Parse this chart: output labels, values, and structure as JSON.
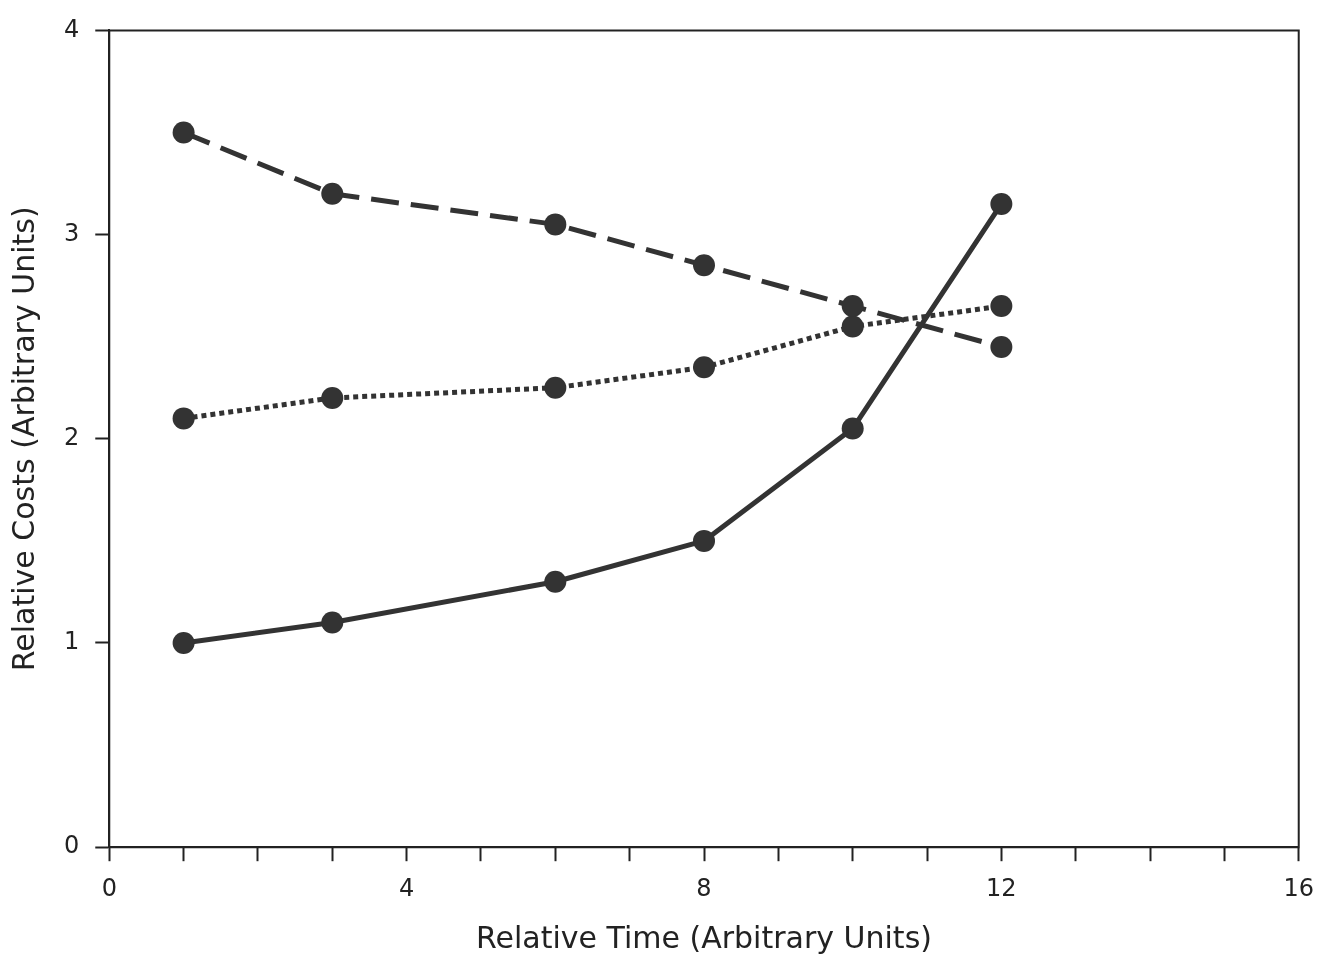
{
  "chart_data": {
    "type": "line",
    "xlabel": "Relative Time (Arbitrary Units)",
    "ylabel": "Relative Costs (Arbitrary Units)",
    "xlim": [
      0,
      16
    ],
    "xticks": [
      0,
      {
        "value": 1,
        "label": null
      },
      {
        "value": 2,
        "label": null
      },
      {
        "value": 3,
        "label": null
      },
      4,
      {
        "value": 5,
        "label": null
      },
      {
        "value": 6,
        "label": null
      },
      {
        "value": 7,
        "label": null
      },
      8,
      {
        "value": 9,
        "label": null
      },
      {
        "value": 10,
        "label": null
      },
      {
        "value": 11,
        "label": null
      },
      12,
      {
        "value": 13,
        "label": null
      },
      {
        "value": 14,
        "label": null
      },
      {
        "value": 15,
        "label": null
      },
      16
    ],
    "ylim": [
      0,
      4
    ],
    "yticks": [
      0,
      1,
      2,
      3,
      4
    ],
    "marker": "circle",
    "legend": false,
    "series": [
      {
        "color": "#333333",
        "line_style": "solid",
        "x": [
          1,
          3,
          6,
          8,
          10,
          12
        ],
        "values": [
          1.0,
          1.1,
          1.3,
          1.5,
          2.05,
          3.15
        ]
      },
      {
        "color": "#333333",
        "line_style": "dashed",
        "x": [
          1,
          3,
          6,
          8,
          10,
          12
        ],
        "values": [
          3.5,
          3.2,
          3.05,
          2.85,
          2.65,
          2.45
        ]
      },
      {
        "color": "#333333",
        "line_style": "dotted",
        "x": [
          1,
          3,
          6,
          8,
          10,
          12
        ],
        "values": [
          2.1,
          2.2,
          2.25,
          2.35,
          2.55,
          2.65
        ]
      }
    ]
  }
}
